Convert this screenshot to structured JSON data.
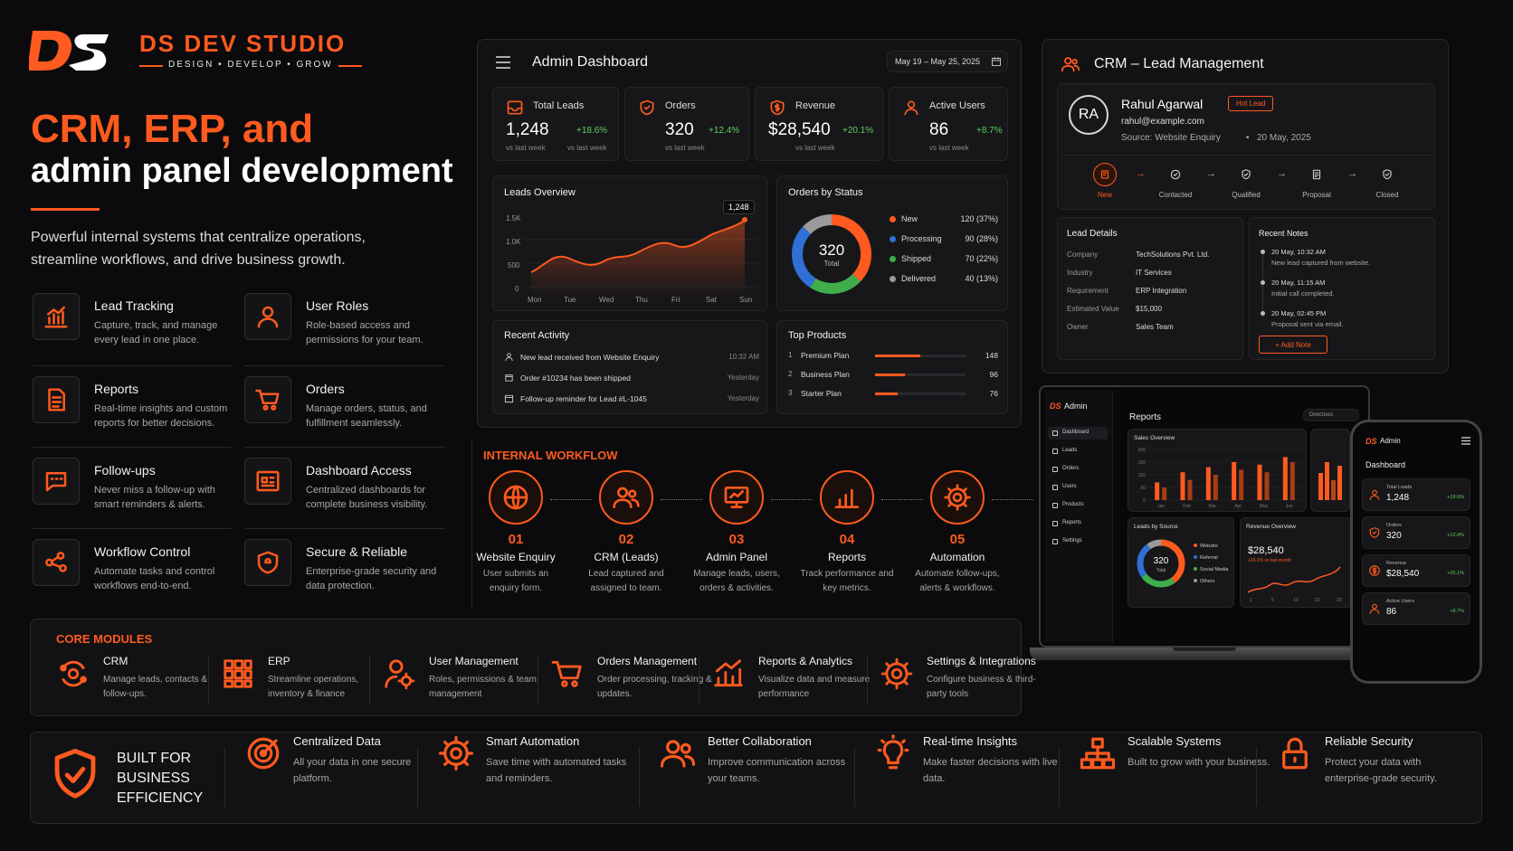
{
  "brand": {
    "logo": "DS",
    "name": "DS DEV STUDIO",
    "tagline": "DESIGN • DEVELOP • GROW"
  },
  "hero": {
    "title_line1": "CRM, ERP, and",
    "title_line2": "admin panel development",
    "description": "Powerful internal systems that centralize operations, streamline workflows, and drive business growth."
  },
  "features": [
    {
      "icon": "chart-bars-icon",
      "title": "Lead Tracking",
      "desc": "Capture, track, and manage every lead in one place."
    },
    {
      "icon": "user-icon",
      "title": "User Roles",
      "desc": "Role-based access and permissions for your team."
    },
    {
      "icon": "document-icon",
      "title": "Reports",
      "desc": "Real-time insights and custom reports for better decisions."
    },
    {
      "icon": "cart-icon",
      "title": "Orders",
      "desc": "Manage orders, status, and fulfillment seamlessly."
    },
    {
      "icon": "chat-icon",
      "title": "Follow-ups",
      "desc": "Never miss a follow-up with smart reminders & alerts."
    },
    {
      "icon": "dashboard-icon",
      "title": "Dashboard Access",
      "desc": "Centralized dashboards for complete business visibility."
    },
    {
      "icon": "workflow-icon",
      "title": "Workflow Control",
      "desc": "Automate tasks and control workflows end-to-end."
    },
    {
      "icon": "shield-icon",
      "title": "Secure & Reliable",
      "desc": "Enterprise-grade security and data protection."
    }
  ],
  "admin": {
    "title": "Admin Dashboard",
    "date_range": "May 19 – May 25, 2025",
    "stats": [
      {
        "icon": "inbox-icon",
        "label": "Total Leads",
        "value": "1,248",
        "change": "+18.6%",
        "sub1": "vs last week",
        "sub2": "vs last week"
      },
      {
        "icon": "shield-icon",
        "label": "Orders",
        "value": "320",
        "change": "+12.4%",
        "sub1": "",
        "sub2": "vs last week"
      },
      {
        "icon": "dollar-icon",
        "label": "Revenue",
        "value": "$28,540",
        "change": "+20.1%",
        "sub1": "",
        "sub2": "vs last week"
      },
      {
        "icon": "user-icon",
        "label": "Active Users",
        "value": "86",
        "change": "+8.7%",
        "sub1": "",
        "sub2": "vs last week"
      }
    ],
    "leads_overview": {
      "title": "Leads Overview",
      "tooltip": "1,248",
      "yticks": [
        "1.5K",
        "1.0K",
        "500",
        "0"
      ],
      "xticks": [
        "Mon",
        "Tue",
        "Wed",
        "Thu",
        "Fri",
        "Sat",
        "Sun"
      ]
    },
    "orders_by_status": {
      "title": "Orders by Status",
      "total": "320",
      "total_label": "Total",
      "items": [
        {
          "label": "New",
          "value": "120 (37%)",
          "color": "#ff5a1f"
        },
        {
          "label": "Processing",
          "value": "90 (28%)",
          "color": "#2f6fd6"
        },
        {
          "label": "Shipped",
          "value": "70 (22%)",
          "color": "#3fae4a"
        },
        {
          "label": "Delivered",
          "value": "40 (13%)",
          "color": "#9a9a9a"
        }
      ]
    },
    "recent_activity": {
      "title": "Recent Activity",
      "items": [
        {
          "icon": "user-icon",
          "text": "New lead received from Website Enquiry",
          "time": "10:32 AM"
        },
        {
          "icon": "box-icon",
          "text": "Order #10234 has been shipped",
          "time": "Yesterday"
        },
        {
          "icon": "calendar-icon",
          "text": "Follow-up reminder for Lead #L-1045",
          "time": "Yesterday"
        }
      ]
    },
    "top_products": {
      "title": "Top Products",
      "items": [
        {
          "rank": "1",
          "name": "Premium Plan",
          "value": "148",
          "fill": 1.0
        },
        {
          "rank": "2",
          "name": "Business Plan",
          "value": "96",
          "fill": 0.65
        },
        {
          "rank": "3",
          "name": "Starter Plan",
          "value": "76",
          "fill": 0.5
        }
      ]
    }
  },
  "crm": {
    "title": "CRM – Lead Management",
    "lead": {
      "initials": "RA",
      "name": "Rahul Agarwal",
      "badge": "Hot Lead",
      "email": "rahul@example.com",
      "source": "Source: Website Enquiry",
      "sep": "•",
      "date": "20 May, 2025"
    },
    "stages": [
      {
        "icon": "new-icon",
        "label": "New"
      },
      {
        "icon": "contacted-icon",
        "label": "Contacted"
      },
      {
        "icon": "qualified-icon",
        "label": "Qualified"
      },
      {
        "icon": "proposal-icon",
        "label": "Proposal"
      },
      {
        "icon": "closed-icon",
        "label": "Closed"
      }
    ],
    "details": {
      "title": "Lead Details",
      "rows": [
        {
          "k": "Company",
          "v": "TechSolutions Pvt. Ltd."
        },
        {
          "k": "Industry",
          "v": "IT Services"
        },
        {
          "k": "Requirement",
          "v": "ERP Integration"
        },
        {
          "k": "Estimated Value",
          "v": "$15,000"
        },
        {
          "k": "Owner",
          "v": "Sales Team"
        }
      ]
    },
    "notes": {
      "title": "Recent Notes",
      "items": [
        {
          "time": "20 May, 10:32 AM",
          "text": "New lead captured from website."
        },
        {
          "time": "20 May, 11:15 AM",
          "text": "Initial call completed."
        },
        {
          "time": "20 May, 02:45 PM",
          "text": "Proposal sent via email."
        }
      ],
      "add_label": "+ Add Note"
    }
  },
  "workflow": {
    "title": "INTERNAL WORKFLOW",
    "steps": [
      {
        "icon": "globe-icon",
        "num": "01",
        "title": "Website Enquiry",
        "desc": "User submits an enquiry form."
      },
      {
        "icon": "users-icon",
        "num": "02",
        "title": "CRM (Leads)",
        "desc": "Lead captured and assigned to team."
      },
      {
        "icon": "monitor-icon",
        "num": "03",
        "title": "Admin Panel",
        "desc": "Manage leads, users, orders & activities."
      },
      {
        "icon": "bar-chart-icon",
        "num": "04",
        "title": "Reports",
        "desc": "Track performance and key metrics."
      },
      {
        "icon": "gear-icon",
        "num": "05",
        "title": "Automation",
        "desc": "Automate follow-ups, alerts & workflows."
      }
    ]
  },
  "laptop": {
    "brand": "Admin",
    "nav": [
      "Dashboard",
      "Leads",
      "Orders",
      "Users",
      "Products",
      "Reports",
      "Settings"
    ],
    "title": "Reports",
    "dropdown": "Directives",
    "sales_title": "Sales Overview",
    "sales_yticks": [
      "200",
      "150",
      "100",
      "50",
      "0"
    ],
    "sales_xticks": [
      "Jan",
      "Feb",
      "Mar",
      "Apr",
      "May",
      "Jun"
    ],
    "sales_chart": {
      "type": "bar",
      "categories": [
        "Jan",
        "Feb",
        "Mar",
        "Apr",
        "May",
        "Jun"
      ],
      "series": [
        {
          "values": [
            70,
            110,
            130,
            150,
            140,
            170
          ]
        },
        {
          "values": [
            50,
            80,
            100,
            120,
            110,
            150
          ]
        }
      ],
      "ylim": [
        0,
        200
      ]
    },
    "source_title": "Leads by Source",
    "source_total": "320",
    "source_total_label": "Total",
    "source_legend": [
      "Website",
      "Referral",
      "Social Media",
      "Others"
    ],
    "revenue_title": "Revenue Overview",
    "revenue_value": "$28,540",
    "revenue_sub": "+20.1% vs last month",
    "revenue_xticks": [
      "1",
      "5",
      "10",
      "15",
      "20"
    ]
  },
  "phone": {
    "brand": "Admin",
    "title": "Dashboard",
    "cards": [
      {
        "icon": "user-icon",
        "label": "Total Leads",
        "value": "1,248",
        "change": "+18.6%"
      },
      {
        "icon": "shield-icon",
        "label": "Orders",
        "value": "320",
        "change": "+12.4%"
      },
      {
        "icon": "dollar-icon",
        "label": "Revenue",
        "value": "$28,540",
        "change": "+20.1%"
      },
      {
        "icon": "user-icon",
        "label": "Active Users",
        "value": "86",
        "change": "+8.7%"
      }
    ]
  },
  "core_modules": {
    "title": "CORE MODULES",
    "items": [
      {
        "icon": "crm-icon",
        "title": "CRM",
        "desc": "Manage leads, contacts & follow-ups."
      },
      {
        "icon": "grid-icon",
        "title": "ERP",
        "desc": "Streamline operations, inventory & finance"
      },
      {
        "icon": "user-settings-icon",
        "title": "User Management",
        "desc": "Roles, permissions & team management"
      },
      {
        "icon": "cart-icon",
        "title": "Orders Management",
        "desc": "Order processing, tracking & updates."
      },
      {
        "icon": "analytics-icon",
        "title": "Reports & Analytics",
        "desc": "Visualize data and measure performance"
      },
      {
        "icon": "gear-icon",
        "title": "Settings & Integrations",
        "desc": "Configure business & third-party tools"
      }
    ]
  },
  "bottom": {
    "headline": [
      "BUILT FOR",
      "BUSINESS",
      "EFFICIENCY"
    ],
    "items": [
      {
        "icon": "target-icon",
        "title": "Centralized Data",
        "desc": "All your data in one secure platform."
      },
      {
        "icon": "gear-icon",
        "title": "Smart Automation",
        "desc": "Save time with automated tasks and reminders."
      },
      {
        "icon": "users-icon",
        "title": "Better Collaboration",
        "desc": "Improve communication across your teams."
      },
      {
        "icon": "bulb-icon",
        "title": "Real-time Insights",
        "desc": "Make faster decisions with live data."
      },
      {
        "icon": "hierarchy-icon",
        "title": "Scalable Systems",
        "desc": "Built to grow with your business."
      },
      {
        "icon": "lock-icon",
        "title": "Reliable Security",
        "desc": "Protect your data with enterprise-grade security."
      }
    ]
  },
  "colors": {
    "accent": "#ff5a1f",
    "background": "#0b0b0d",
    "positive": "#5fce5f"
  }
}
